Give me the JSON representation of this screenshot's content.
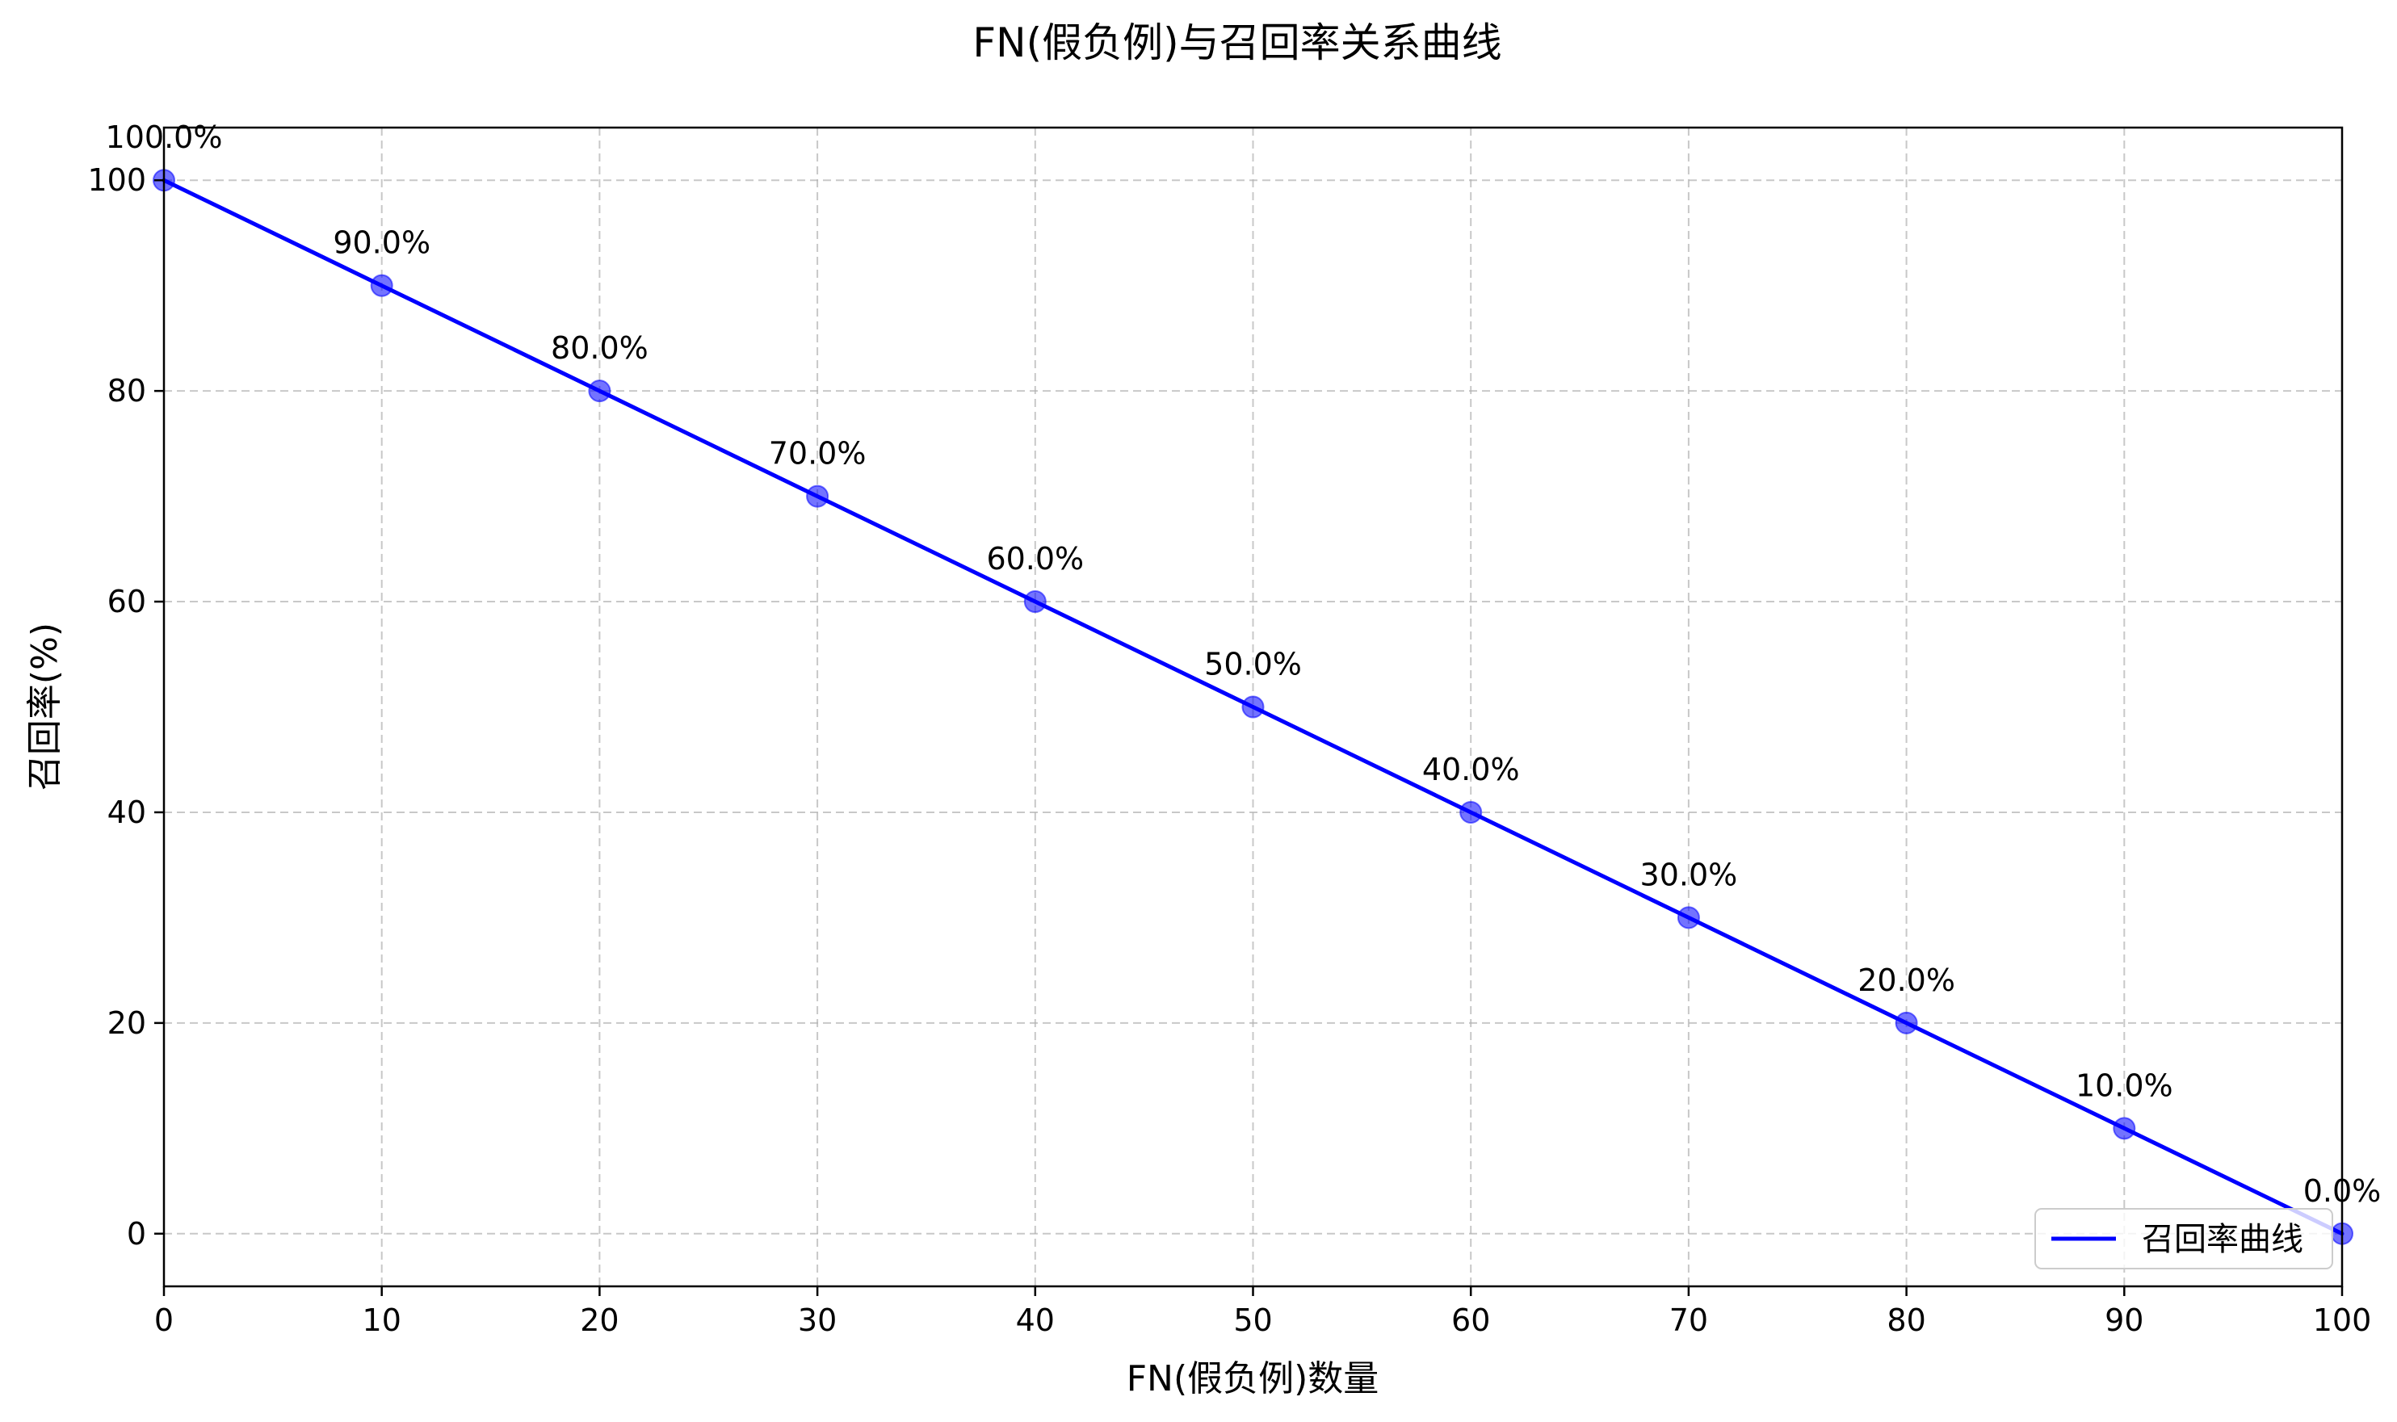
{
  "chart_data": {
    "type": "line",
    "title": "FN(假负例)与召回率关系曲线",
    "xlabel": "FN(假负例)数量",
    "ylabel": "召回率(%)",
    "xlim": [
      0,
      100
    ],
    "ylim": [
      -5,
      105
    ],
    "x_ticks": [
      0,
      10,
      20,
      30,
      40,
      50,
      60,
      70,
      80,
      90,
      100
    ],
    "y_ticks": [
      0,
      20,
      40,
      60,
      80,
      100
    ],
    "x_tick_labels": [
      "0",
      "10",
      "20",
      "30",
      "40",
      "50",
      "60",
      "70",
      "80",
      "90",
      "100"
    ],
    "y_tick_labels": [
      "0",
      "20",
      "40",
      "60",
      "80",
      "100"
    ],
    "grid": true,
    "legend_position": "bottom-right",
    "series": [
      {
        "name": "召回率曲线",
        "color": "#0000ff",
        "x": [
          0,
          10,
          20,
          30,
          40,
          50,
          60,
          70,
          80,
          90,
          100
        ],
        "y": [
          100,
          90,
          80,
          70,
          60,
          50,
          40,
          30,
          20,
          10,
          0
        ],
        "point_labels": [
          "100.0%",
          "90.0%",
          "80.0%",
          "70.0%",
          "60.0%",
          "50.0%",
          "40.0%",
          "30.0%",
          "20.0%",
          "10.0%",
          "0.0%"
        ]
      }
    ]
  }
}
